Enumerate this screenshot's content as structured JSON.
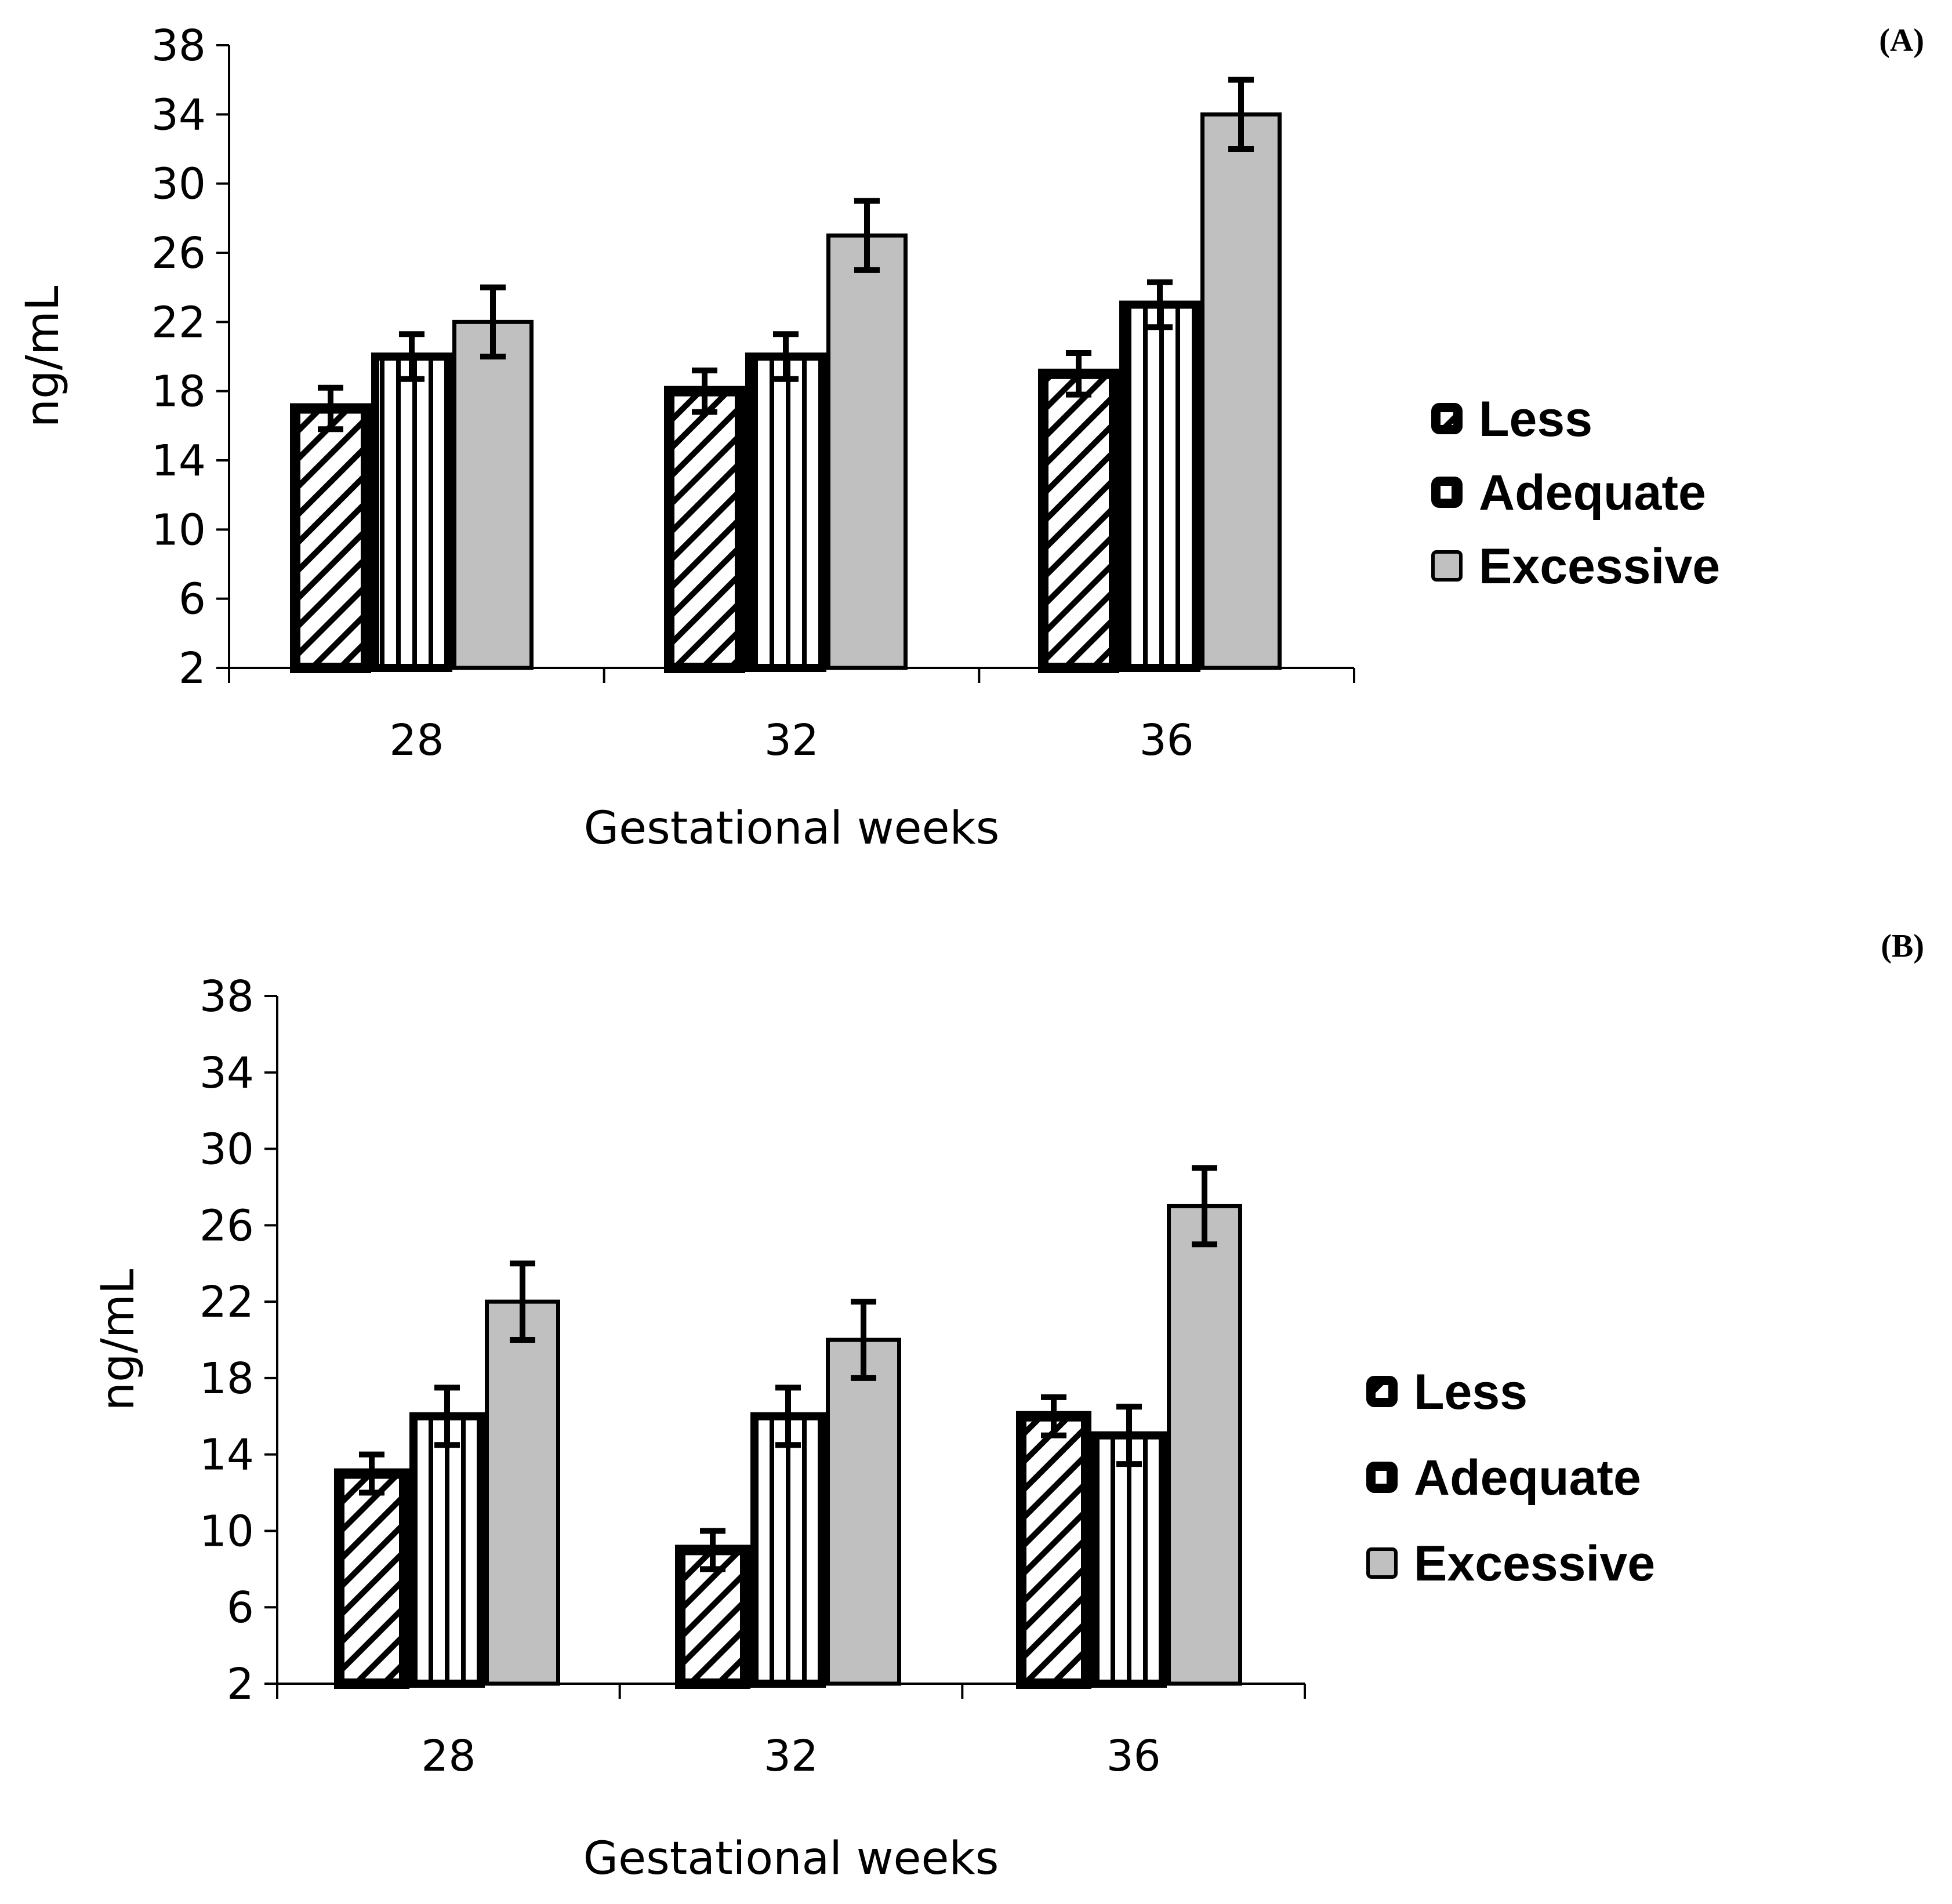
{
  "chart_data": [
    {
      "panel_label": "(A)",
      "type": "bar",
      "categories": [
        "28",
        "32",
        "36"
      ],
      "xlabel": "Gestational weeks",
      "ylabel": "ng/mL",
      "ylim": [
        2,
        38
      ],
      "yticks": [
        2,
        6,
        10,
        14,
        18,
        22,
        26,
        30,
        34,
        38
      ],
      "legend_position": "right",
      "series": [
        {
          "name": "Less",
          "values": [
            17,
            18,
            19
          ],
          "errors": [
            1.2,
            1.2,
            1.2
          ],
          "pattern": "diagonal"
        },
        {
          "name": "Adequate",
          "values": [
            20,
            20,
            23
          ],
          "errors": [
            1.3,
            1.3,
            1.3
          ],
          "pattern": "vertical"
        },
        {
          "name": "Excessive",
          "values": [
            22,
            27,
            34
          ],
          "errors": [
            2,
            2,
            2
          ],
          "pattern": "gray"
        }
      ]
    },
    {
      "panel_label": "(B)",
      "type": "bar",
      "categories": [
        "28",
        "32",
        "36"
      ],
      "xlabel": "Gestational weeks",
      "ylabel": "ng/mL",
      "ylim": [
        2,
        38
      ],
      "yticks": [
        2,
        6,
        10,
        14,
        18,
        22,
        26,
        30,
        34,
        38
      ],
      "legend_position": "right",
      "series": [
        {
          "name": "Less",
          "values": [
            13,
            9,
            16
          ],
          "errors": [
            1,
            1,
            1
          ],
          "pattern": "diagonal"
        },
        {
          "name": "Adequate",
          "values": [
            16,
            16,
            15
          ],
          "errors": [
            1.5,
            1.5,
            1.5
          ],
          "pattern": "vertical"
        },
        {
          "name": "Excessive",
          "values": [
            22,
            20,
            27
          ],
          "errors": [
            2,
            2,
            2
          ],
          "pattern": "gray"
        }
      ]
    }
  ],
  "colors": {
    "excessive_fill": "#c0c0c0",
    "stroke": "#000000",
    "background": "#ffffff"
  }
}
